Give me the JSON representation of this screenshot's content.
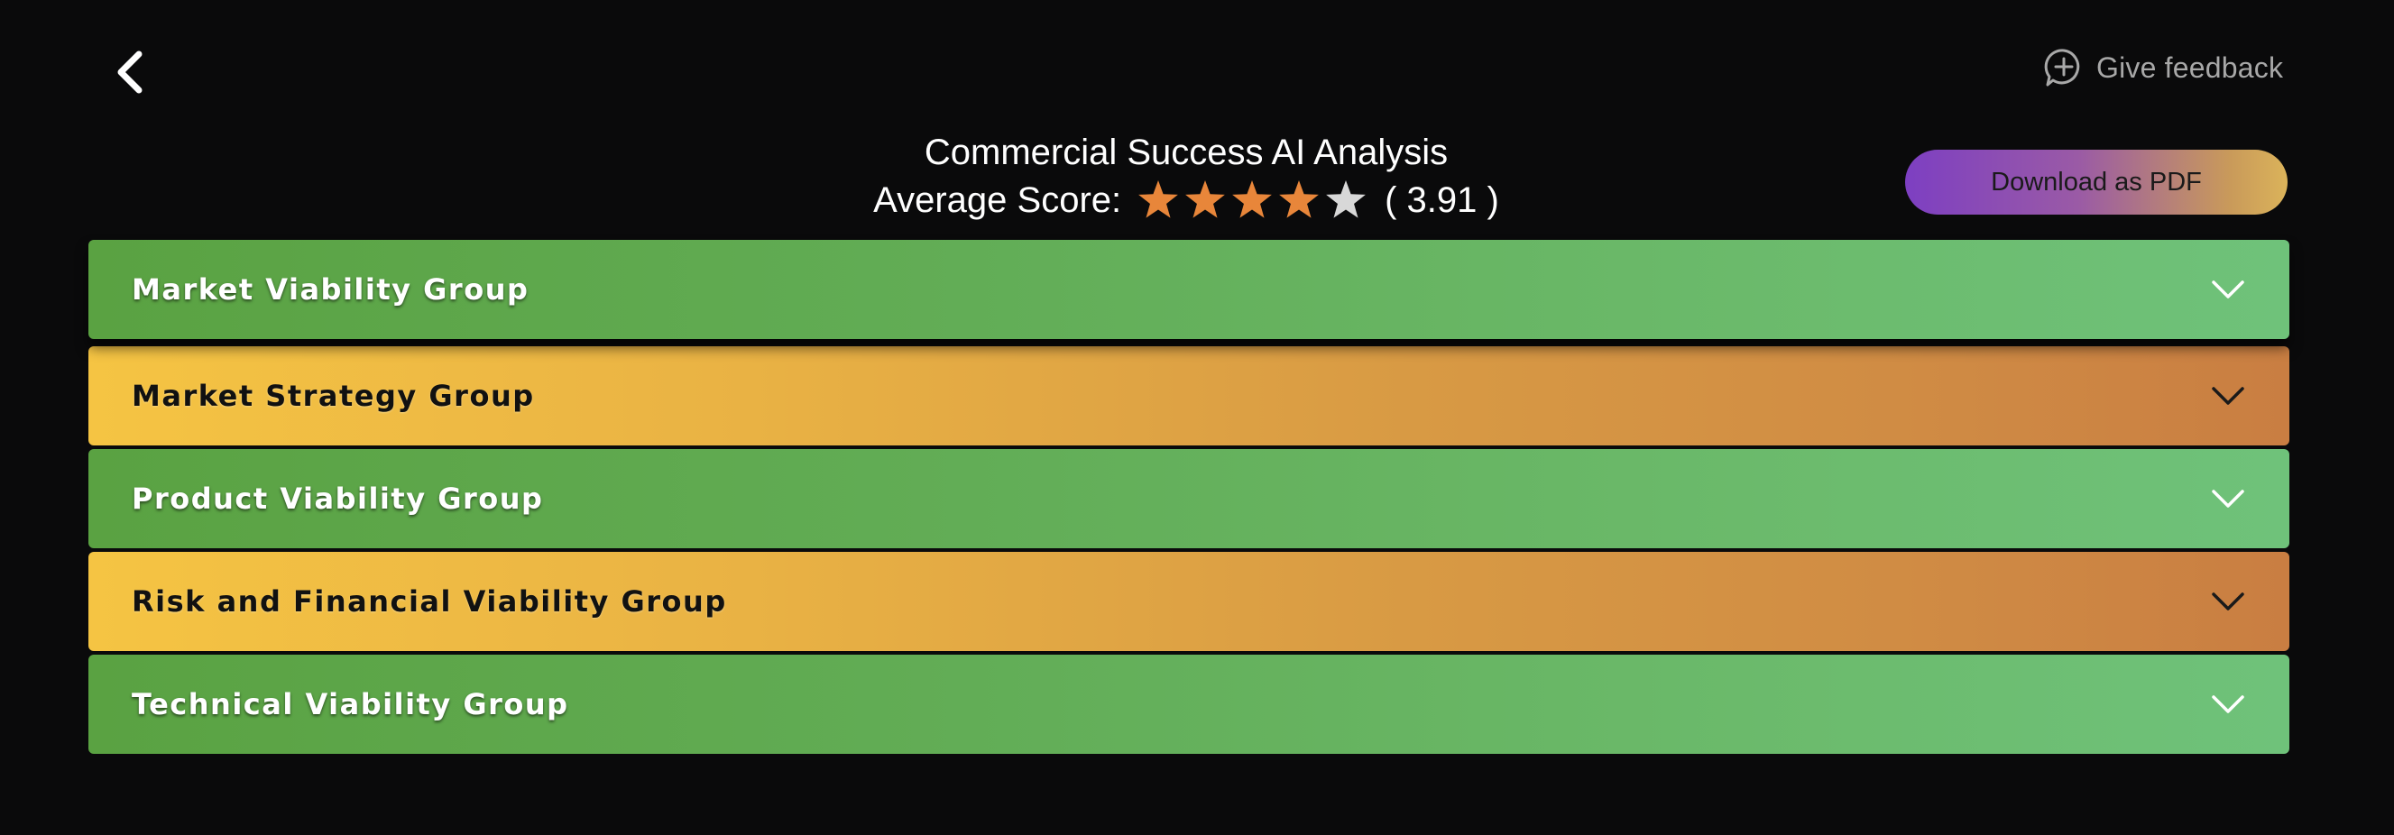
{
  "nav": {
    "back_icon": "chevron-left-icon",
    "feedback_icon": "chat-plus-icon",
    "feedback_label": "Give feedback"
  },
  "header": {
    "title": "Commercial Success AI Analysis",
    "score_label": "Average Score:",
    "rating": 3.91,
    "rating_display": "( 3.91 )",
    "stars_total": 5,
    "stars_filled": 4,
    "star_filled_color": "#e8863a",
    "star_empty_color": "#d8d8d8"
  },
  "actions": {
    "download_label": "Download as PDF"
  },
  "groups": [
    {
      "label": "Market Viability Group",
      "color": "green"
    },
    {
      "label": "Market Strategy Group",
      "color": "orange"
    },
    {
      "label": "Product Viability Group",
      "color": "green"
    },
    {
      "label": "Risk and Financial Viability Group",
      "color": "orange"
    },
    {
      "label": "Technical Viability Group",
      "color": "green"
    }
  ],
  "colors": {
    "background": "#0a0a0b",
    "green": "#5aa242",
    "orange": "#f5c443"
  }
}
